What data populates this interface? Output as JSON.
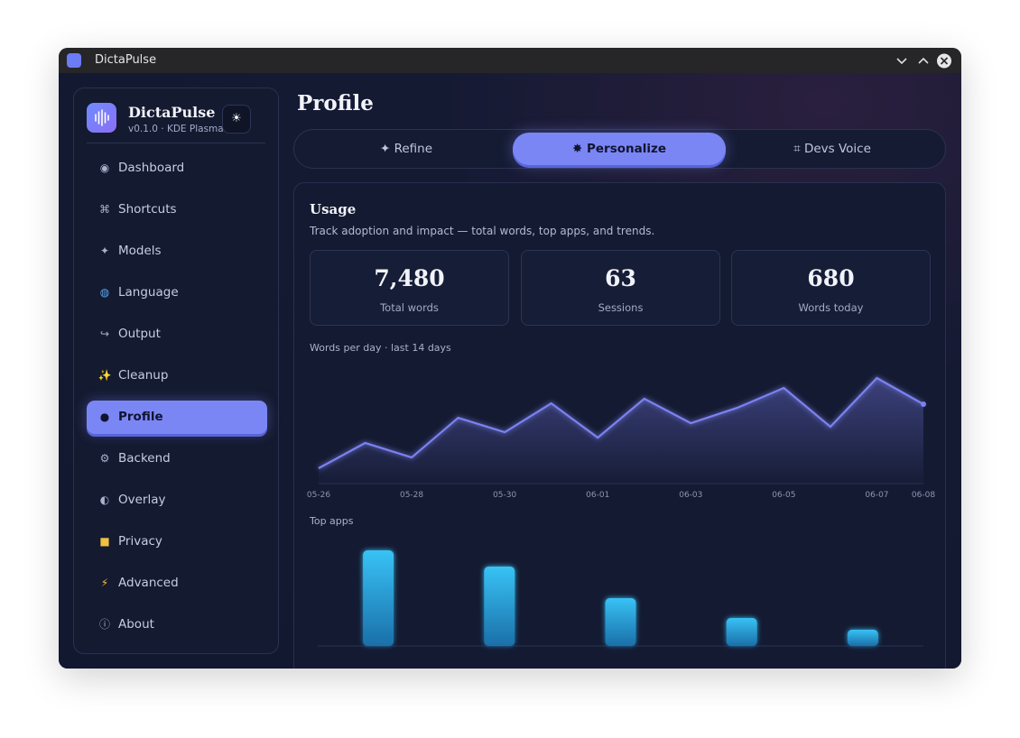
{
  "window": {
    "title": "DictaPulse"
  },
  "sidebar": {
    "app_name": "DictaPulse",
    "version": "v0.1.0 · KDE Plasma",
    "nav": [
      "Dashboard",
      "Shortcuts",
      "Models",
      "Language",
      "Output",
      "Cleanup",
      "Profile",
      "Backend",
      "Overlay",
      "Privacy",
      "Advanced",
      "About"
    ],
    "active": "Profile"
  },
  "page_title": "Profile",
  "tabs": {
    "items": [
      "Refine",
      "Personalize",
      "Devs Voice"
    ],
    "active": "Personalize"
  },
  "usage": {
    "title": "Usage",
    "subtitle": "Track adoption and impact — total words, top apps, and trends.",
    "stats": [
      {
        "value": "7,480",
        "label": "Total words"
      },
      {
        "value": "63",
        "label": "Sessions"
      },
      {
        "value": "680",
        "label": "Words today"
      }
    ]
  },
  "chart_data": [
    {
      "type": "line",
      "title": "Words per day · last 14 days",
      "categories": [
        "05-26",
        null,
        "05-28",
        null,
        "05-30",
        null,
        "06-01",
        null,
        "06-03",
        null,
        "06-05",
        null,
        "06-07",
        "06-08"
      ],
      "values": [
        105,
        332,
        202,
        558,
        429,
        688,
        380,
        729,
        510,
        648,
        826,
        478,
        915,
        680
      ],
      "color": "#7b82f0"
    },
    {
      "type": "bar",
      "title": "Top apps",
      "categories": [
        null,
        null,
        null,
        null,
        null
      ],
      "values": [
        106,
        88,
        53,
        31,
        18
      ],
      "color": "#2fb6f0"
    }
  ]
}
